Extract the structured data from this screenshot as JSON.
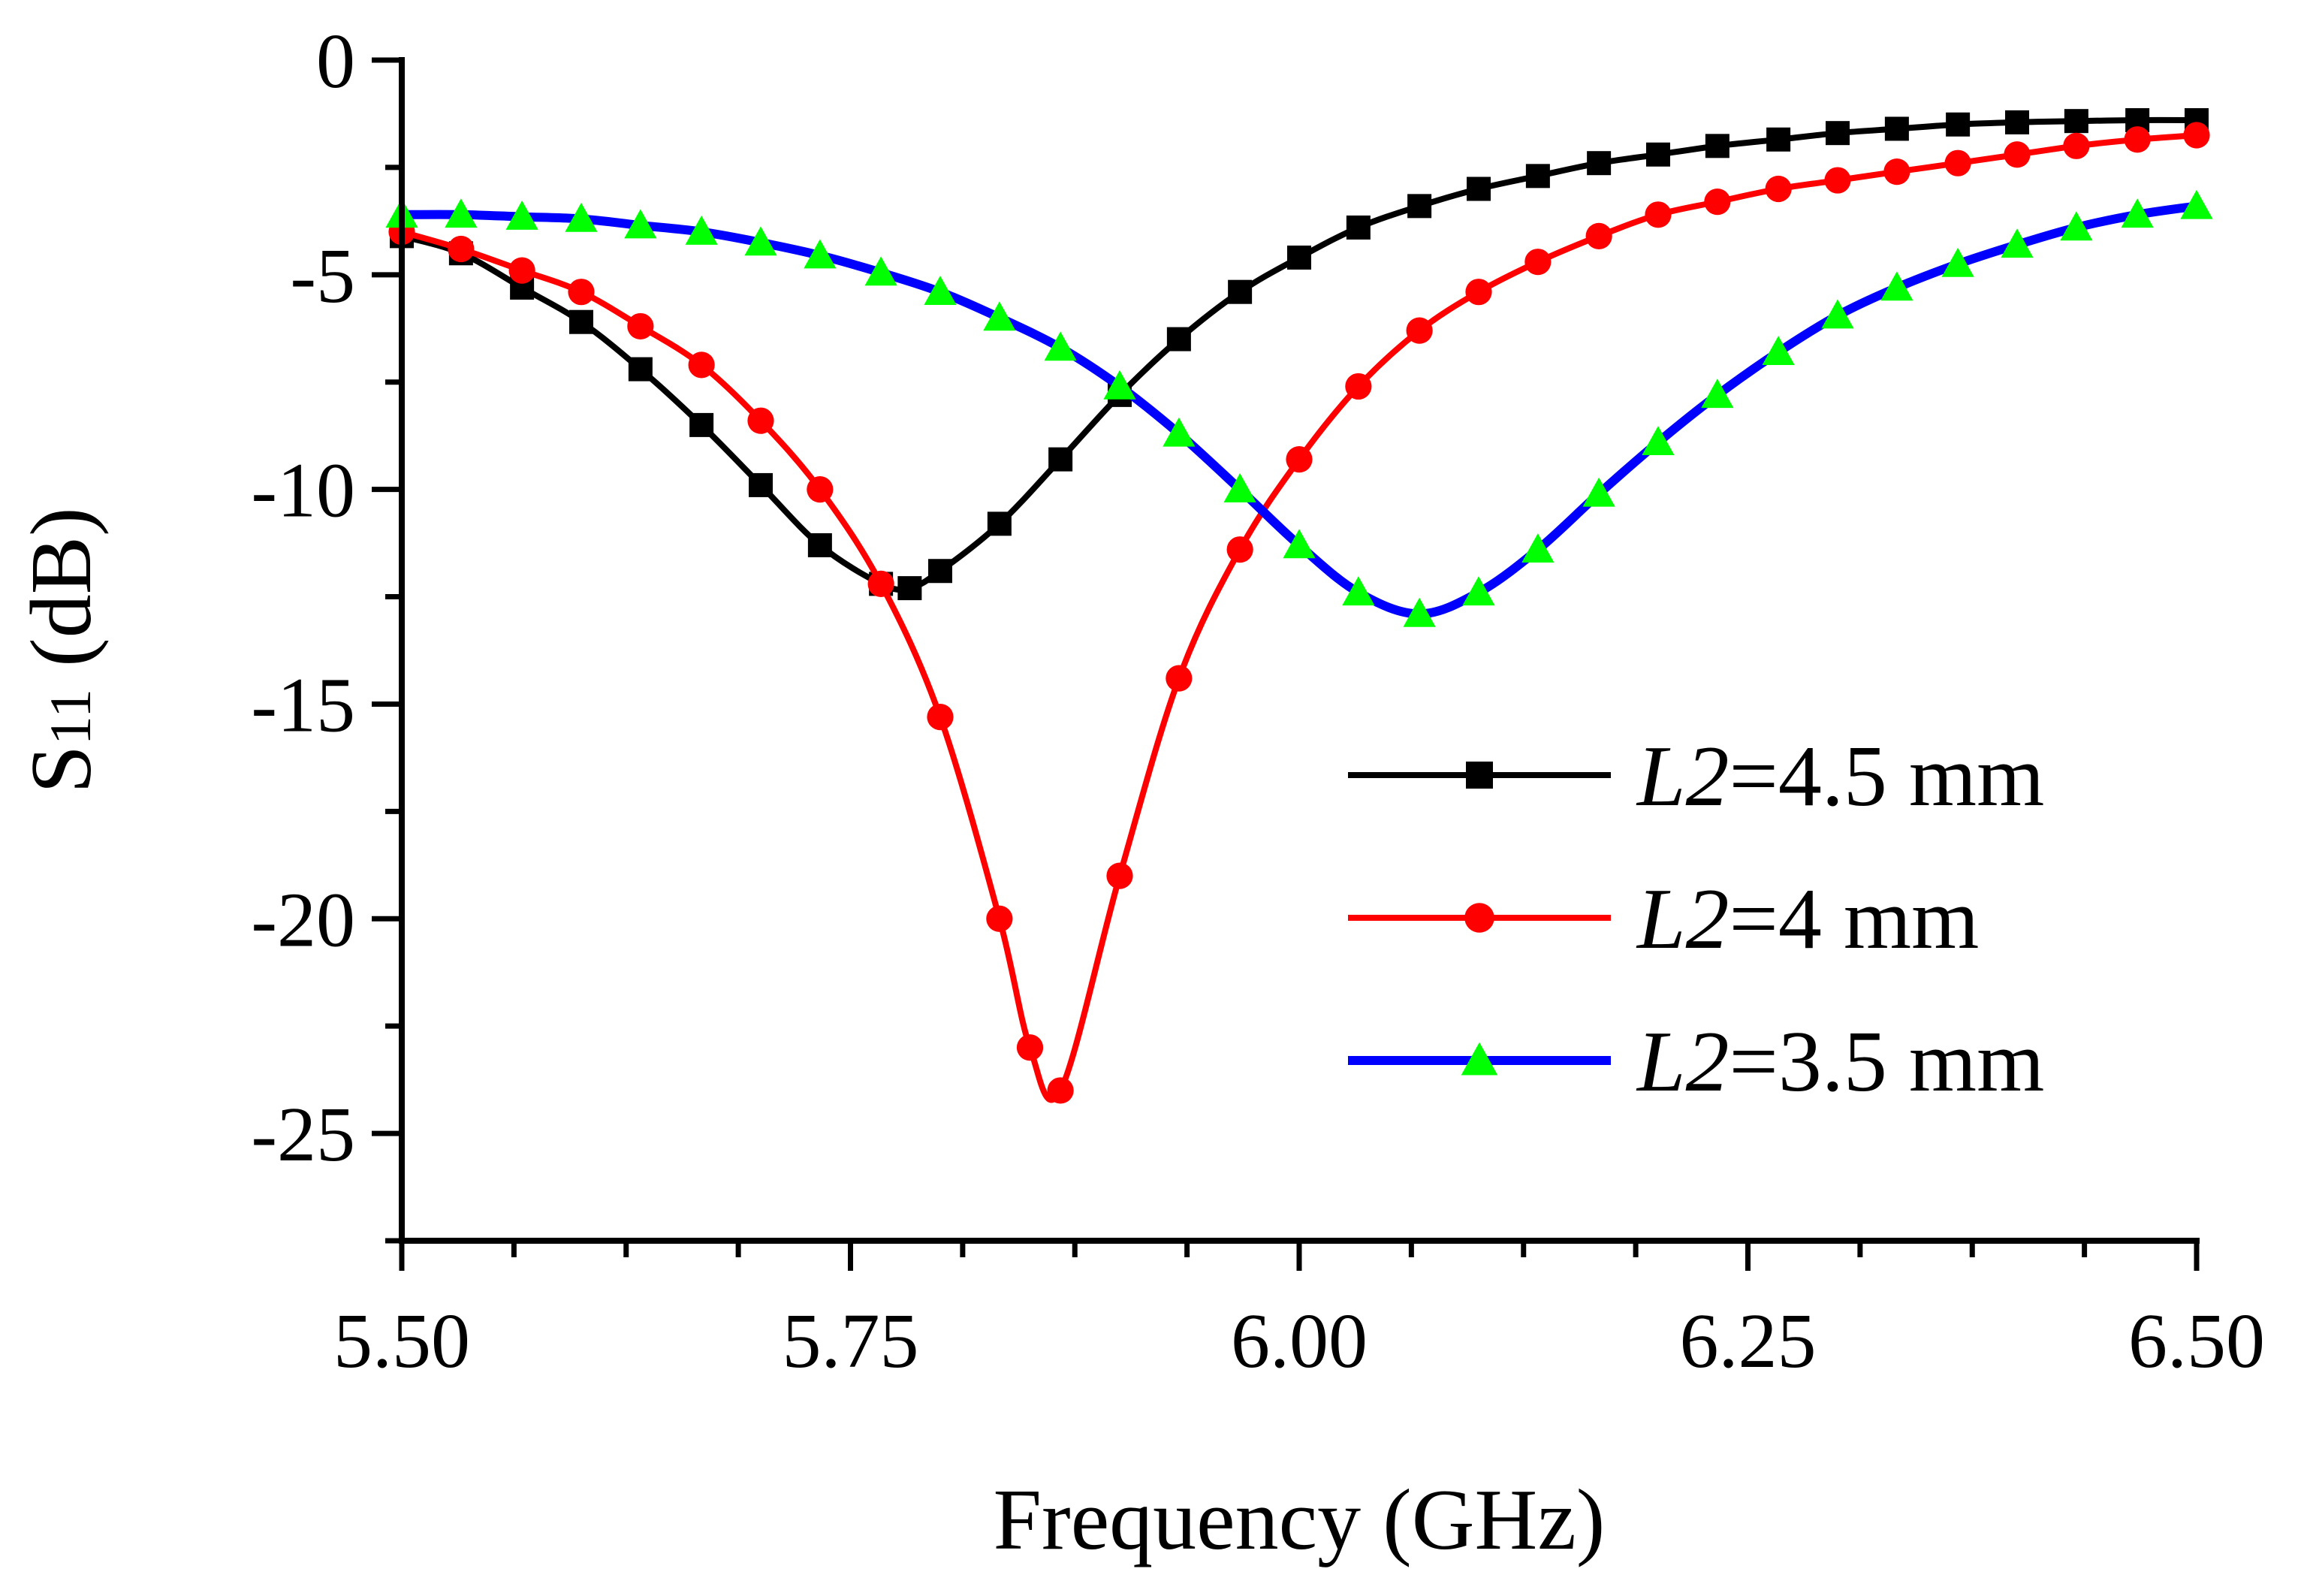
{
  "chart_data": {
    "type": "line",
    "title": "",
    "xlabel": "Frequency (GHz)",
    "ylabel": {
      "main": "S",
      "sub": "11",
      "unit": " (dB)"
    },
    "xlim": [
      5.5,
      6.5
    ],
    "ylim": [
      -27.5,
      0
    ],
    "xticks": [
      "5.50",
      "5.75",
      "6.00",
      "6.25",
      "6.50"
    ],
    "xtick_values": [
      5.5,
      5.75,
      6.0,
      6.25,
      6.5
    ],
    "yticks": [
      "0",
      "-5",
      "-10",
      "-15",
      "-20",
      "-25"
    ],
    "ytick_values": [
      0,
      -5,
      -10,
      -15,
      -20,
      -25
    ],
    "grid": false,
    "legend_position": "bottom-right",
    "series": [
      {
        "name": {
          "italic": "L",
          "sub": "2",
          "rest": "=4.5 mm"
        },
        "line_color": "#000000",
        "marker": "square",
        "marker_color": "#000000",
        "x": [
          5.5,
          5.533,
          5.567,
          5.6,
          5.633,
          5.667,
          5.7,
          5.733,
          5.767,
          5.783,
          5.8,
          5.833,
          5.867,
          5.9,
          5.933,
          5.967,
          6.0,
          6.033,
          6.067,
          6.1,
          6.133,
          6.167,
          6.2,
          6.233,
          6.267,
          6.3,
          6.333,
          6.367,
          6.4,
          6.433,
          6.467,
          6.5
        ],
        "y": [
          -4.1,
          -4.5,
          -5.3,
          -6.1,
          -7.2,
          -8.5,
          -9.9,
          -11.3,
          -12.2,
          -12.3,
          -11.9,
          -10.8,
          -9.3,
          -7.8,
          -6.5,
          -5.4,
          -4.6,
          -3.9,
          -3.4,
          -3.0,
          -2.7,
          -2.4,
          -2.2,
          -2.0,
          -1.85,
          -1.7,
          -1.6,
          -1.5,
          -1.45,
          -1.42,
          -1.4,
          -1.4
        ]
      },
      {
        "name": {
          "italic": "L",
          "sub": "2",
          "rest": "=4 mm"
        },
        "line_color": "#ff0000",
        "marker": "circle",
        "marker_color": "#ff0000",
        "x": [
          5.5,
          5.533,
          5.567,
          5.6,
          5.633,
          5.667,
          5.7,
          5.733,
          5.767,
          5.8,
          5.833,
          5.85,
          5.867,
          5.9,
          5.933,
          5.967,
          6.0,
          6.033,
          6.067,
          6.1,
          6.133,
          6.167,
          6.2,
          6.233,
          6.267,
          6.3,
          6.333,
          6.367,
          6.4,
          6.433,
          6.467,
          6.5
        ],
        "y": [
          -4.0,
          -4.4,
          -4.9,
          -5.4,
          -6.2,
          -7.1,
          -8.4,
          -10.0,
          -12.2,
          -15.3,
          -20.0,
          -23.0,
          -24.0,
          -19.0,
          -14.4,
          -11.4,
          -9.3,
          -7.6,
          -6.3,
          -5.4,
          -4.7,
          -4.1,
          -3.6,
          -3.3,
          -3.0,
          -2.8,
          -2.6,
          -2.4,
          -2.2,
          -2.0,
          -1.85,
          -1.75
        ]
      },
      {
        "name": {
          "italic": "L",
          "sub": "2",
          "rest": "=3.5 mm"
        },
        "line_color": "#0000ff",
        "marker": "triangle",
        "marker_color": "#00ff00",
        "x": [
          5.5,
          5.533,
          5.567,
          5.6,
          5.633,
          5.667,
          5.7,
          5.733,
          5.767,
          5.8,
          5.833,
          5.867,
          5.9,
          5.933,
          5.967,
          6.0,
          6.033,
          6.067,
          6.1,
          6.133,
          6.167,
          6.2,
          6.233,
          6.267,
          6.3,
          6.333,
          6.367,
          6.4,
          6.433,
          6.467,
          6.5
        ],
        "y": [
          -3.6,
          -3.6,
          -3.65,
          -3.7,
          -3.85,
          -4.0,
          -4.25,
          -4.55,
          -4.95,
          -5.4,
          -6.0,
          -6.7,
          -7.6,
          -8.7,
          -10.0,
          -11.3,
          -12.4,
          -12.9,
          -12.4,
          -11.4,
          -10.1,
          -8.9,
          -7.8,
          -6.8,
          -5.95,
          -5.3,
          -4.75,
          -4.3,
          -3.9,
          -3.6,
          -3.4
        ]
      }
    ]
  }
}
